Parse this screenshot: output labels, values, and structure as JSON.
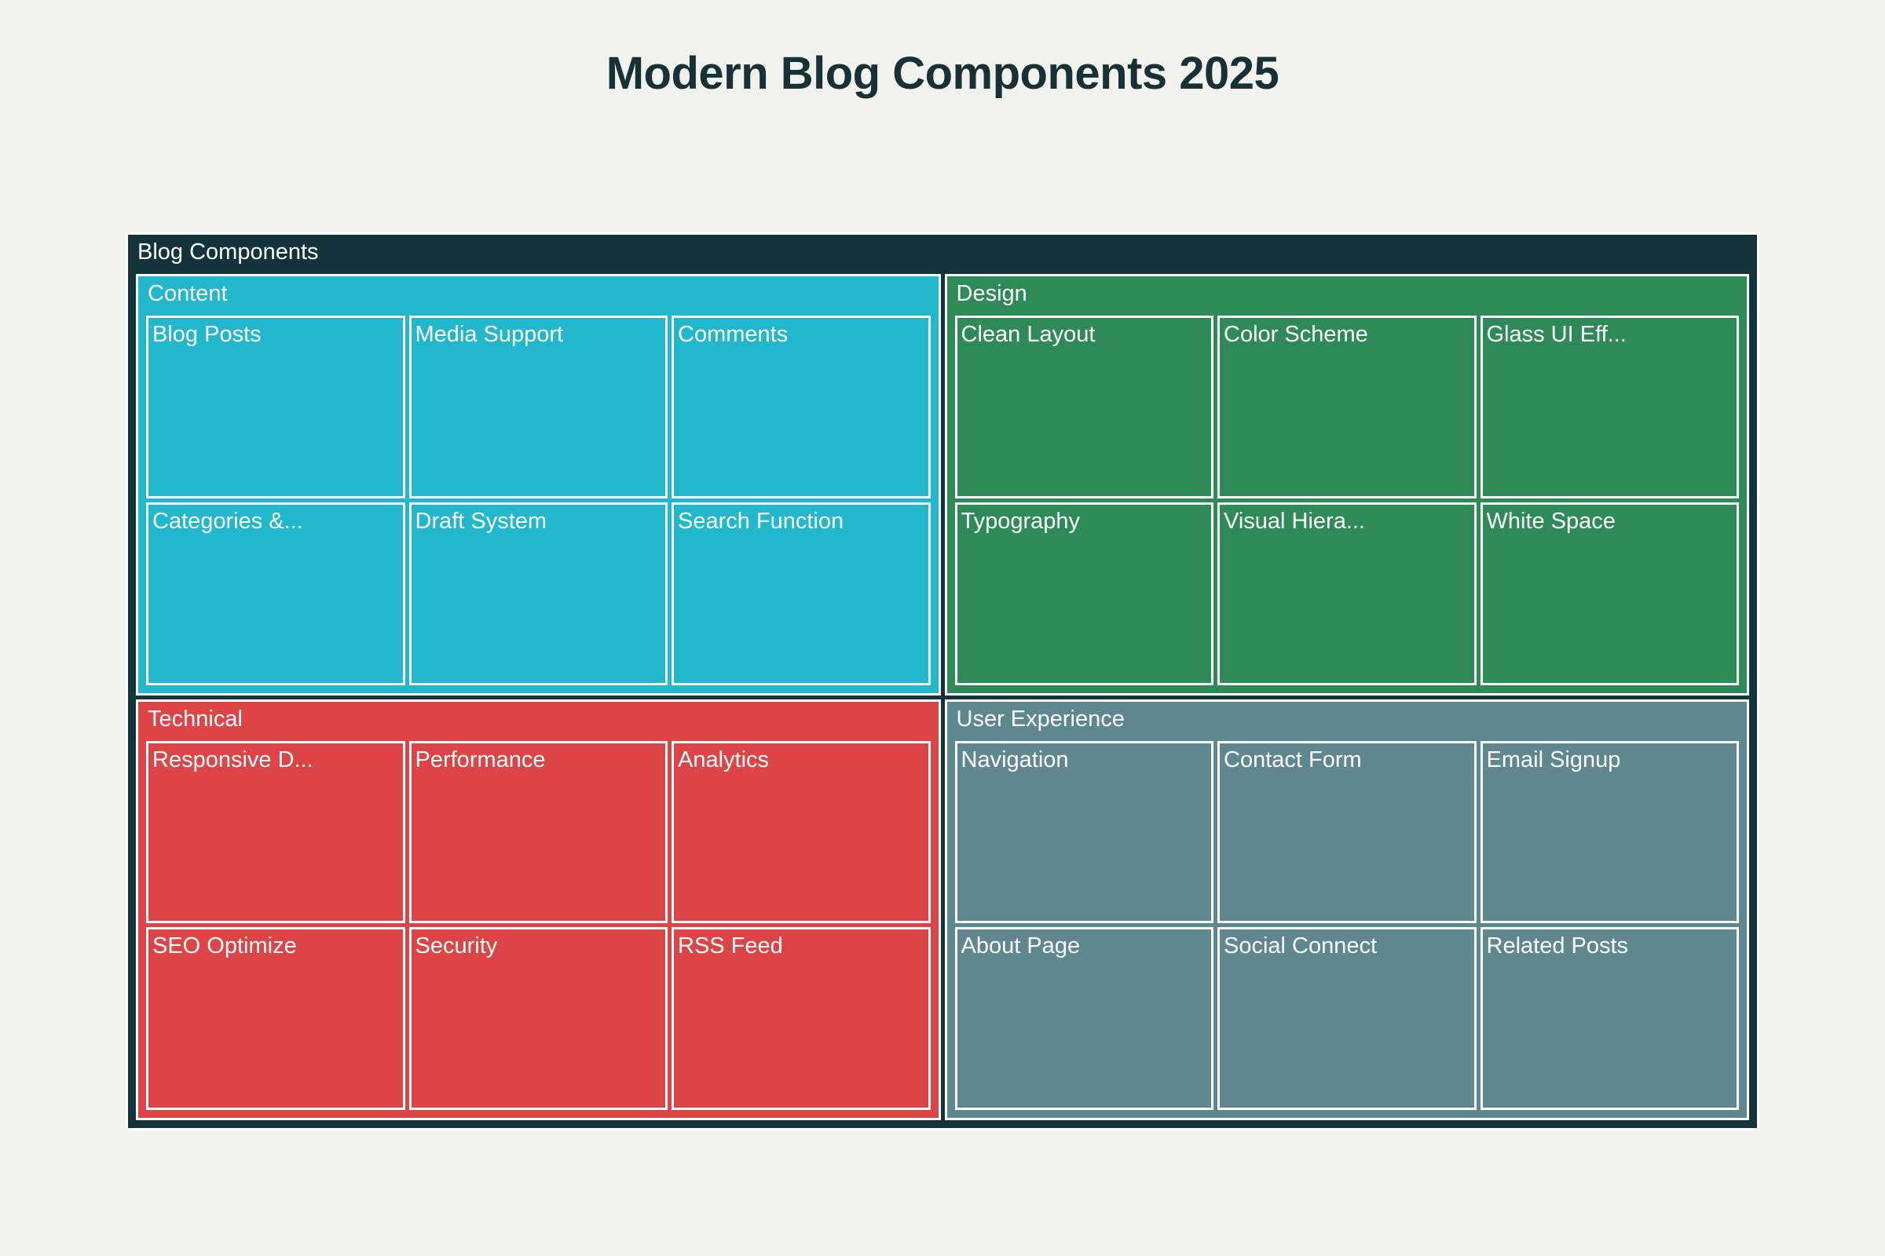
{
  "chart_data": {
    "type": "treemap",
    "title": "Modern Blog Components 2025",
    "root": "Blog Components",
    "groups": [
      {
        "name": "Content",
        "color": "#21b7cc",
        "items": [
          {
            "label": "Blog Posts",
            "value": 1
          },
          {
            "label": "Media Support",
            "value": 1
          },
          {
            "label": "Comments",
            "value": 1
          },
          {
            "label": "Categories &...",
            "value": 1
          },
          {
            "label": "Draft System",
            "value": 1
          },
          {
            "label": "Search Function",
            "value": 1
          }
        ]
      },
      {
        "name": "Design",
        "color": "#2e8b57",
        "items": [
          {
            "label": "Clean Layout",
            "value": 1
          },
          {
            "label": "Color Scheme",
            "value": 1
          },
          {
            "label": "Glass UI Eff...",
            "value": 1
          },
          {
            "label": "Typography",
            "value": 1
          },
          {
            "label": "Visual Hiera...",
            "value": 1
          },
          {
            "label": "White Space",
            "value": 1
          }
        ]
      },
      {
        "name": "Technical",
        "color": "#dc4446",
        "items": [
          {
            "label": "Responsive D...",
            "value": 1
          },
          {
            "label": "Performance",
            "value": 1
          },
          {
            "label": "Analytics",
            "value": 1
          },
          {
            "label": "SEO Optimize",
            "value": 1
          },
          {
            "label": "Security",
            "value": 1
          },
          {
            "label": "RSS Feed",
            "value": 1
          }
        ]
      },
      {
        "name": "User Experience",
        "color": "#5e878f",
        "items": [
          {
            "label": "Navigation",
            "value": 1
          },
          {
            "label": "Contact Form",
            "value": 1
          },
          {
            "label": "Email Signup",
            "value": 1
          },
          {
            "label": "About Page",
            "value": 1
          },
          {
            "label": "Social Connect",
            "value": 1
          },
          {
            "label": "Related Posts",
            "value": 1
          }
        ]
      }
    ]
  }
}
